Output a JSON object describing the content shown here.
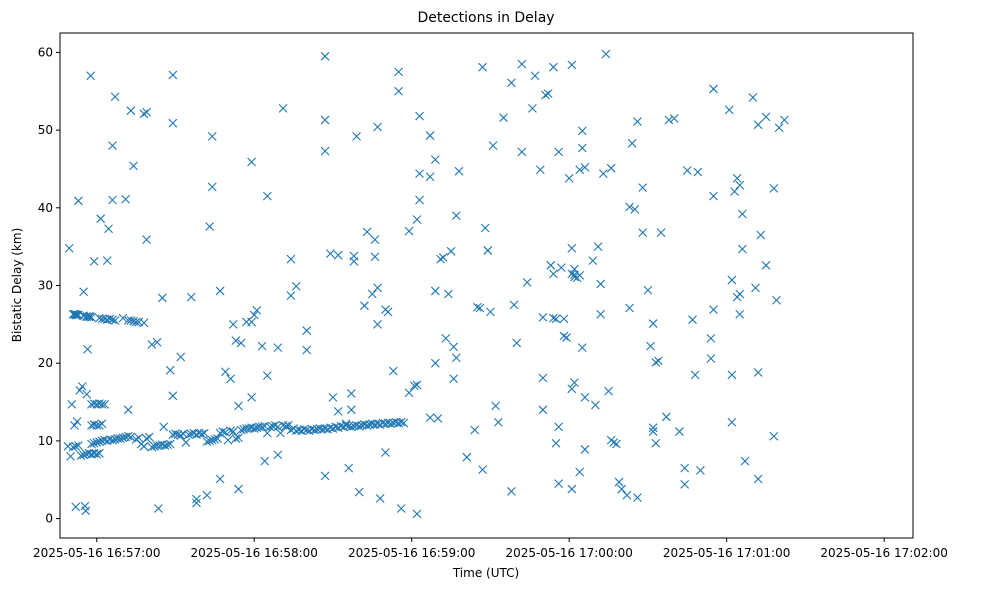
{
  "chart_data": {
    "type": "scatter",
    "title": "Detections in Delay",
    "xlabel": "Time (UTC)",
    "ylabel": "Bistatic Delay (km)",
    "marker": "x",
    "color": "#1f77b4",
    "xlim_seconds": [
      -14,
      311
    ],
    "ylim": [
      -2.5,
      62.5
    ],
    "x_origin": "2025-05-16 16:57:00",
    "x_ticks": [
      {
        "s": 0,
        "label": "2025-05-16 16:57:00"
      },
      {
        "s": 60,
        "label": "2025-05-16 16:58:00"
      },
      {
        "s": 120,
        "label": "2025-05-16 16:59:00"
      },
      {
        "s": 180,
        "label": "2025-05-16 17:00:00"
      },
      {
        "s": 240,
        "label": "2025-05-16 17:01:00"
      },
      {
        "s": 300,
        "label": "2025-05-16 17:02:00"
      }
    ],
    "y_ticks": [
      0,
      10,
      20,
      30,
      40,
      50,
      60
    ],
    "points_note": "x = seconds after 2025-05-16 16:57:00 UTC, y = bistatic delay (km)",
    "points": [
      [
        -10.5,
        34.8
      ],
      [
        -9.5,
        14.7
      ],
      [
        -8.8,
        26.3
      ],
      [
        -8.2,
        26.3
      ],
      [
        -7.8,
        26.2
      ],
      [
        -7.3,
        26.2
      ],
      [
        -8.5,
        12.0
      ],
      [
        -7.5,
        12.5
      ],
      [
        -8,
        1.5
      ],
      [
        -7,
        40.9
      ],
      [
        -6.5,
        16.5
      ],
      [
        -5.5,
        17.0
      ],
      [
        -5,
        29.2
      ],
      [
        -4.5,
        1.6
      ],
      [
        -4.2,
        1.0
      ],
      [
        -3.5,
        21.8
      ],
      [
        -3.8,
        16.0
      ],
      [
        -5,
        26.1
      ],
      [
        -3.8,
        26.0
      ],
      [
        -3,
        26.0
      ],
      [
        -2.5,
        26.0
      ],
      [
        -2.3,
        57.0
      ],
      [
        -1,
        33.1
      ],
      [
        1.5,
        38.6
      ],
      [
        4,
        33.2
      ],
      [
        4.5,
        37.3
      ],
      [
        6,
        41.0
      ],
      [
        6,
        48.0
      ],
      [
        7,
        54.3
      ],
      [
        11,
        41.1
      ],
      [
        12,
        14.0
      ],
      [
        13,
        52.5
      ],
      [
        14,
        45.4
      ],
      [
        18,
        52.1
      ],
      [
        19,
        52.3
      ],
      [
        19,
        35.9
      ],
      [
        21,
        22.4
      ],
      [
        23,
        22.7
      ],
      [
        23.5,
        1.3
      ],
      [
        25,
        28.4
      ],
      [
        25.5,
        11.8
      ],
      [
        28,
        19.1
      ],
      [
        29,
        50.9
      ],
      [
        29,
        57.1
      ],
      [
        29,
        15.8
      ],
      [
        32,
        20.8
      ],
      [
        36,
        28.5
      ],
      [
        38,
        2.5
      ],
      [
        38,
        2.0
      ],
      [
        42,
        3.0
      ],
      [
        43,
        37.6
      ],
      [
        44,
        42.7
      ],
      [
        44,
        49.2
      ],
      [
        47,
        29.3
      ],
      [
        47,
        5.1
      ],
      [
        49,
        18.9
      ],
      [
        51,
        18.0
      ],
      [
        52,
        25.0
      ],
      [
        53,
        22.9
      ],
      [
        54,
        14.5
      ],
      [
        54,
        3.8
      ],
      [
        55,
        22.6
      ],
      [
        57,
        25.3
      ],
      [
        59,
        45.9
      ],
      [
        59,
        15.6
      ],
      [
        59,
        25.3
      ],
      [
        60,
        26.2
      ],
      [
        61,
        26.8
      ],
      [
        63,
        22.2
      ],
      [
        64,
        7.4
      ],
      [
        65,
        41.5
      ],
      [
        65,
        18.4
      ],
      [
        69,
        22.0
      ],
      [
        69,
        8.2
      ],
      [
        71,
        52.8
      ],
      [
        74,
        33.4
      ],
      [
        74,
        28.7
      ],
      [
        76,
        29.9
      ],
      [
        80,
        24.2
      ],
      [
        80,
        21.7
      ],
      [
        87,
        47.3
      ],
      [
        87,
        51.3
      ],
      [
        87,
        59.5
      ],
      [
        87,
        5.5
      ],
      [
        89,
        34.1
      ],
      [
        90,
        15.6
      ],
      [
        92,
        13.8
      ],
      [
        92,
        33.9
      ],
      [
        95,
        12.2
      ],
      [
        96,
        6.5
      ],
      [
        97,
        14.0
      ],
      [
        97,
        16.1
      ],
      [
        98,
        33.8
      ],
      [
        98,
        33.1
      ],
      [
        99,
        49.2
      ],
      [
        100,
        3.4
      ],
      [
        102,
        27.4
      ],
      [
        103,
        36.9
      ],
      [
        105,
        28.9
      ],
      [
        106,
        35.9
      ],
      [
        106,
        33.7
      ],
      [
        107,
        25.0
      ],
      [
        107,
        29.7
      ],
      [
        107,
        50.4
      ],
      [
        108,
        2.6
      ],
      [
        110,
        26.9
      ],
      [
        110,
        8.5
      ],
      [
        111,
        26.6
      ],
      [
        113,
        19.0
      ],
      [
        115,
        55.0
      ],
      [
        115,
        57.5
      ],
      [
        116,
        1.3
      ],
      [
        119,
        37.0
      ],
      [
        119,
        16.2
      ],
      [
        121,
        17.1
      ],
      [
        122,
        17.2
      ],
      [
        122,
        0.6
      ],
      [
        122,
        38.5
      ],
      [
        123,
        41.0
      ],
      [
        123,
        51.8
      ],
      [
        123,
        44.4
      ],
      [
        127,
        49.3
      ],
      [
        127,
        44.0
      ],
      [
        127,
        13.0
      ],
      [
        129,
        46.2
      ],
      [
        129,
        20.0
      ],
      [
        129,
        29.3
      ],
      [
        130,
        12.9
      ],
      [
        131,
        33.4
      ],
      [
        132,
        33.6
      ],
      [
        133,
        23.2
      ],
      [
        134,
        28.9
      ],
      [
        135,
        34.4
      ],
      [
        136,
        18.0
      ],
      [
        136,
        22.1
      ],
      [
        137,
        20.7
      ],
      [
        137,
        39.0
      ],
      [
        138,
        44.7
      ],
      [
        141,
        7.9
      ],
      [
        144,
        11.4
      ],
      [
        145,
        27.2
      ],
      [
        146,
        27.1
      ],
      [
        147,
        6.3
      ],
      [
        147,
        58.1
      ],
      [
        148,
        37.4
      ],
      [
        149,
        34.5
      ],
      [
        149,
        34.5
      ],
      [
        150,
        26.6
      ],
      [
        151,
        48.0
      ],
      [
        152,
        14.5
      ],
      [
        153,
        12.4
      ],
      [
        155,
        51.6
      ],
      [
        158,
        56.1
      ],
      [
        158,
        3.5
      ],
      [
        159,
        27.5
      ],
      [
        160,
        22.6
      ],
      [
        162,
        47.2
      ],
      [
        162,
        58.5
      ],
      [
        164,
        30.4
      ],
      [
        166,
        52.8
      ],
      [
        167,
        57.0
      ],
      [
        169,
        44.9
      ],
      [
        170,
        14.0
      ],
      [
        170,
        18.1
      ],
      [
        170,
        25.9
      ],
      [
        171,
        54.5
      ],
      [
        172,
        54.7
      ],
      [
        173,
        32.6
      ],
      [
        174,
        31.5
      ],
      [
        174,
        25.8
      ],
      [
        174,
        58.1
      ],
      [
        175,
        9.7
      ],
      [
        175,
        25.7
      ],
      [
        176,
        47.2
      ],
      [
        176,
        11.8
      ],
      [
        176,
        4.5
      ],
      [
        177,
        32.3
      ],
      [
        178,
        25.7
      ],
      [
        178,
        23.5
      ],
      [
        179,
        23.3
      ],
      [
        180,
        43.8
      ],
      [
        181,
        58.4
      ],
      [
        181,
        3.8
      ],
      [
        181,
        34.8
      ],
      [
        181,
        31.5
      ],
      [
        181,
        16.7
      ],
      [
        182,
        31.4
      ],
      [
        182,
        32.1
      ],
      [
        182,
        31.1
      ],
      [
        182,
        17.5
      ],
      [
        183,
        31.0
      ],
      [
        184,
        31.3
      ],
      [
        184,
        6.0
      ],
      [
        184,
        44.9
      ],
      [
        185,
        49.9
      ],
      [
        185,
        47.7
      ],
      [
        185,
        22.0
      ],
      [
        186,
        8.9
      ],
      [
        186,
        45.2
      ],
      [
        186,
        15.6
      ],
      [
        189,
        33.2
      ],
      [
        190,
        14.6
      ],
      [
        191,
        35.0
      ],
      [
        192,
        30.2
      ],
      [
        192,
        26.3
      ],
      [
        193,
        44.4
      ],
      [
        194,
        59.8
      ],
      [
        195,
        16.4
      ],
      [
        196,
        45.1
      ],
      [
        196,
        10.1
      ],
      [
        197,
        9.8
      ],
      [
        198,
        9.6
      ],
      [
        199,
        4.7
      ],
      [
        200,
        3.8
      ],
      [
        202,
        3.0
      ],
      [
        203,
        40.1
      ],
      [
        203,
        27.1
      ],
      [
        204,
        48.3
      ],
      [
        205,
        39.8
      ],
      [
        206,
        51.1
      ],
      [
        206,
        2.7
      ],
      [
        208,
        42.6
      ],
      [
        208,
        36.8
      ],
      [
        210,
        29.4
      ],
      [
        211,
        22.2
      ],
      [
        212,
        25.1
      ],
      [
        213,
        20.1
      ],
      [
        214,
        20.3
      ],
      [
        212,
        11.7
      ],
      [
        212,
        11.2
      ],
      [
        213,
        9.7
      ],
      [
        215,
        36.8
      ],
      [
        217,
        13.1
      ],
      [
        218,
        51.3
      ],
      [
        220,
        51.5
      ],
      [
        222,
        11.2
      ],
      [
        224,
        6.5
      ],
      [
        224,
        4.4
      ],
      [
        225,
        44.8
      ],
      [
        227,
        25.6
      ],
      [
        228,
        18.5
      ],
      [
        229,
        44.6
      ],
      [
        230,
        6.2
      ],
      [
        235,
        55.3
      ],
      [
        235,
        41.5
      ],
      [
        234,
        23.2
      ],
      [
        234,
        20.6
      ],
      [
        235,
        26.9
      ],
      [
        241,
        52.6
      ],
      [
        242,
        30.7
      ],
      [
        242,
        18.5
      ],
      [
        242,
        12.4
      ],
      [
        243,
        42.1
      ],
      [
        244,
        43.8
      ],
      [
        245,
        42.9
      ],
      [
        246,
        39.2
      ],
      [
        244,
        28.5
      ],
      [
        245,
        26.3
      ],
      [
        245,
        28.9
      ],
      [
        246,
        34.7
      ],
      [
        247,
        7.4
      ],
      [
        250,
        54.2
      ],
      [
        251,
        29.7
      ],
      [
        252,
        50.7
      ],
      [
        252,
        5.1
      ],
      [
        252,
        18.8
      ],
      [
        253,
        36.5
      ],
      [
        255,
        51.7
      ],
      [
        255,
        32.6
      ],
      [
        258,
        42.5
      ],
      [
        259,
        28.1
      ],
      [
        260,
        50.3
      ],
      [
        262,
        51.3
      ],
      [
        258,
        10.6
      ]
    ],
    "series_line1_note": "dense track near 9-12 km",
    "track1": [
      [
        -11,
        9.3
      ],
      [
        -10,
        8.0
      ],
      [
        -9,
        9.2
      ],
      [
        -8,
        9.3
      ],
      [
        -7,
        9.4
      ],
      [
        -6,
        8.1
      ],
      [
        -5,
        8.2
      ],
      [
        -4,
        8.3
      ],
      [
        -3,
        8.4
      ],
      [
        -2,
        9.6
      ],
      [
        -1,
        9.7
      ],
      [
        0,
        9.8
      ],
      [
        1,
        9.9
      ],
      [
        2,
        10.0
      ],
      [
        3,
        10.1
      ],
      [
        4,
        10.0
      ],
      [
        5,
        10.2
      ],
      [
        6,
        10.1
      ],
      [
        7,
        10.2
      ],
      [
        8,
        10.3
      ],
      [
        9,
        10.3
      ],
      [
        10,
        10.4
      ],
      [
        11,
        10.5
      ],
      [
        12,
        10.6
      ],
      [
        13,
        10.5
      ],
      [
        15,
        10.2
      ],
      [
        16,
        10.4
      ],
      [
        17,
        9.6
      ],
      [
        18,
        9.3
      ],
      [
        19,
        10.3
      ],
      [
        20,
        10.5
      ],
      [
        21,
        9.2
      ],
      [
        22,
        9.3
      ],
      [
        23,
        9.4
      ],
      [
        24,
        9.4
      ],
      [
        25,
        9.5
      ],
      [
        26,
        9.4
      ],
      [
        27,
        9.5
      ],
      [
        28,
        9.6
      ],
      [
        29,
        10.8
      ],
      [
        30,
        10.9
      ],
      [
        31,
        10.8
      ],
      [
        32,
        10.7
      ],
      [
        33,
        10.9
      ],
      [
        34,
        9.8
      ],
      [
        35,
        10.8
      ],
      [
        36,
        10.9
      ],
      [
        37,
        11.0
      ],
      [
        38,
        10.8
      ],
      [
        39,
        11.0
      ],
      [
        40,
        10.9
      ],
      [
        41,
        11.0
      ],
      [
        42,
        9.9
      ],
      [
        43,
        10.0
      ],
      [
        44,
        10.1
      ],
      [
        45,
        10.2
      ],
      [
        46,
        10.3
      ],
      [
        47,
        11.0
      ],
      [
        48,
        11.2
      ],
      [
        49,
        11.1
      ],
      [
        50,
        10.1
      ],
      [
        51,
        11.3
      ],
      [
        52,
        11.2
      ],
      [
        53,
        10.3
      ],
      [
        54,
        10.4
      ],
      [
        55,
        11.4
      ],
      [
        56,
        11.5
      ],
      [
        57,
        11.6
      ],
      [
        58,
        11.6
      ],
      [
        59,
        11.7
      ],
      [
        60,
        11.6
      ],
      [
        61,
        11.7
      ],
      [
        62,
        11.8
      ],
      [
        63,
        11.8
      ],
      [
        64,
        11.9
      ],
      [
        65,
        11.0
      ],
      [
        66,
        11.8
      ],
      [
        67,
        11.9
      ],
      [
        68,
        12.0
      ],
      [
        69,
        11.8
      ],
      [
        70,
        11.0
      ],
      [
        71,
        12.0
      ],
      [
        72,
        11.9
      ],
      [
        73,
        12.0
      ],
      [
        74,
        11.4
      ],
      [
        75,
        11.6
      ],
      [
        76,
        11.3
      ],
      [
        77,
        11.4
      ],
      [
        78,
        11.3
      ],
      [
        79,
        11.5
      ],
      [
        80,
        11.4
      ],
      [
        81,
        11.3
      ],
      [
        82,
        11.5
      ],
      [
        83,
        11.4
      ],
      [
        84,
        11.5
      ],
      [
        85,
        11.6
      ],
      [
        86,
        11.5
      ],
      [
        87,
        11.6
      ],
      [
        88,
        11.5
      ],
      [
        89,
        11.7
      ],
      [
        90,
        11.6
      ],
      [
        91,
        11.8
      ],
      [
        92,
        11.7
      ],
      [
        93,
        11.9
      ],
      [
        94,
        11.8
      ],
      [
        95,
        12.0
      ],
      [
        96,
        11.9
      ],
      [
        97,
        11.8
      ],
      [
        98,
        11.9
      ],
      [
        99,
        12.0
      ],
      [
        100,
        11.9
      ],
      [
        101,
        12.0
      ],
      [
        102,
        12.1
      ],
      [
        103,
        12.0
      ],
      [
        104,
        12.1
      ],
      [
        105,
        12.2
      ],
      [
        106,
        12.1
      ],
      [
        107,
        12.2
      ],
      [
        108,
        12.1
      ],
      [
        109,
        12.3
      ],
      [
        110,
        12.2
      ],
      [
        111,
        12.3
      ],
      [
        112,
        12.2
      ],
      [
        113,
        12.3
      ],
      [
        114,
        12.4
      ],
      [
        115,
        12.3
      ],
      [
        116,
        12.4
      ],
      [
        117,
        12.3
      ]
    ],
    "track2": [
      [
        -9,
        26.3
      ],
      [
        -8,
        26.2
      ],
      [
        -7,
        26.2
      ],
      [
        -5,
        26.1
      ],
      [
        -4,
        26.0
      ],
      [
        -3,
        26.0
      ],
      [
        -2,
        25.9
      ],
      [
        1,
        25.8
      ],
      [
        2,
        25.7
      ],
      [
        3,
        25.7
      ],
      [
        4,
        25.6
      ],
      [
        5,
        25.7
      ],
      [
        6,
        25.6
      ],
      [
        7,
        25.5
      ],
      [
        10,
        25.8
      ],
      [
        12,
        25.5
      ],
      [
        13,
        25.5
      ],
      [
        14,
        25.4
      ],
      [
        15,
        25.3
      ],
      [
        16,
        25.3
      ],
      [
        18,
        25.2
      ]
    ],
    "track3": [
      [
        -2,
        14.7
      ],
      [
        -1,
        14.8
      ],
      [
        0,
        14.7
      ],
      [
        1,
        14.8
      ],
      [
        2,
        14.7
      ],
      [
        3,
        14.7
      ],
      [
        -2,
        12.0
      ],
      [
        -1,
        12.1
      ],
      [
        0,
        12.0
      ],
      [
        1,
        12.0
      ],
      [
        2,
        12.2
      ],
      [
        -2,
        8.3
      ],
      [
        -1,
        8.4
      ],
      [
        0,
        8.3
      ],
      [
        1,
        8.4
      ]
    ]
  }
}
